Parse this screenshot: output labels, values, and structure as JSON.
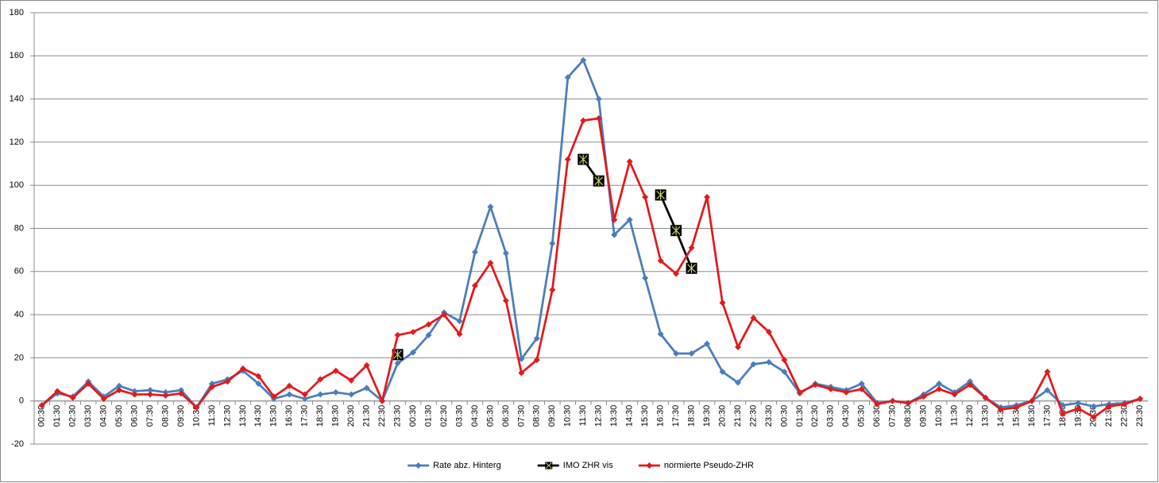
{
  "chart_data": {
    "type": "line",
    "categories": [
      "00:30",
      "01:30",
      "02:30",
      "03:30",
      "04:30",
      "05:30",
      "06:30",
      "07:30",
      "08:30",
      "09:30",
      "10:30",
      "11:30",
      "12:30",
      "13:30",
      "14:30",
      "15:30",
      "16:30",
      "17:30",
      "18:30",
      "19:30",
      "20:30",
      "21:30",
      "22:30",
      "23:30",
      "00:30",
      "01:30",
      "02:30",
      "03:30",
      "04:30",
      "05:30",
      "06:30",
      "07:30",
      "08:30",
      "09:30",
      "10:30",
      "11:30",
      "12:30",
      "13:30",
      "14:30",
      "15:30",
      "16:30",
      "17:30",
      "18:30",
      "19:30",
      "20:30",
      "21:30",
      "22:30",
      "23:30",
      "00:30",
      "01:30",
      "02:30",
      "03:30",
      "04:30",
      "05:30",
      "06:30",
      "07:30",
      "08:30",
      "09:30",
      "10:30",
      "11:30",
      "12:30",
      "13:30",
      "14:30",
      "15:30",
      "16:30",
      "17:30",
      "18:30",
      "19:30",
      "20:30",
      "21:30",
      "22:30",
      "23:30"
    ],
    "series": [
      {
        "name": "Rate abz. Hinterg",
        "color": "#4a7ebb",
        "marker": "diamond",
        "values": [
          -2,
          3.5,
          2,
          9,
          2,
          7,
          4.5,
          5,
          4,
          5,
          -3,
          8,
          10,
          14,
          8,
          1,
          3,
          1,
          3,
          4,
          3,
          6,
          0,
          17.5,
          22.5,
          30.5,
          41,
          37,
          69,
          90,
          68.5,
          19.5,
          29,
          73,
          150,
          158,
          140,
          77,
          84,
          57,
          31,
          22,
          22,
          26.5,
          13.5,
          8.5,
          17,
          18,
          13.5,
          3.5,
          8,
          6.5,
          5,
          8,
          -1,
          0,
          -1,
          3,
          8,
          4,
          9,
          1.5,
          -3,
          -2,
          0,
          5,
          -2,
          -1,
          -2.5,
          -1.5,
          -1,
          1
        ]
      },
      {
        "name": "IMO ZHR vis",
        "color": "#000000",
        "marker": "square",
        "values": [
          null,
          null,
          null,
          null,
          null,
          null,
          null,
          null,
          null,
          null,
          null,
          null,
          null,
          null,
          null,
          null,
          null,
          null,
          null,
          null,
          null,
          null,
          null,
          21.5,
          null,
          null,
          null,
          null,
          null,
          null,
          null,
          null,
          null,
          null,
          null,
          112,
          102,
          null,
          null,
          null,
          95.5,
          79,
          61.5,
          null,
          null,
          null,
          null,
          null,
          null,
          null,
          null,
          null,
          null,
          null,
          null,
          null,
          null,
          null,
          null,
          null,
          null,
          null,
          null,
          null,
          null,
          null,
          null,
          null,
          null,
          null,
          null,
          null
        ]
      },
      {
        "name": "normierte Pseudo-ZHR",
        "color": "#e31a1c",
        "marker": "diamond",
        "values": [
          -2,
          4.5,
          1.5,
          8,
          1,
          5,
          3,
          3,
          2.5,
          3.5,
          -3,
          6.5,
          9,
          15,
          11.5,
          2,
          7,
          3,
          10,
          14,
          9.5,
          16.5,
          0,
          30.5,
          32,
          35.5,
          40,
          31,
          53.5,
          64,
          46.5,
          13,
          19,
          51.5,
          112,
          130,
          131,
          84,
          111,
          94.5,
          65,
          59,
          71,
          94.5,
          45.5,
          25,
          38.5,
          32,
          19,
          4,
          7.5,
          5.5,
          4,
          5.5,
          -1.5,
          0,
          -1,
          2,
          5.5,
          3,
          7.5,
          1.5,
          -4,
          -3,
          0,
          13.5,
          -6,
          -3.5,
          -7.5,
          -2.5,
          -1.5,
          1
        ]
      }
    ],
    "ylim": [
      -20,
      180
    ],
    "yticks": [
      -20,
      0,
      20,
      40,
      60,
      80,
      100,
      120,
      140,
      160,
      180
    ],
    "grid": true,
    "legend": "bottom"
  }
}
